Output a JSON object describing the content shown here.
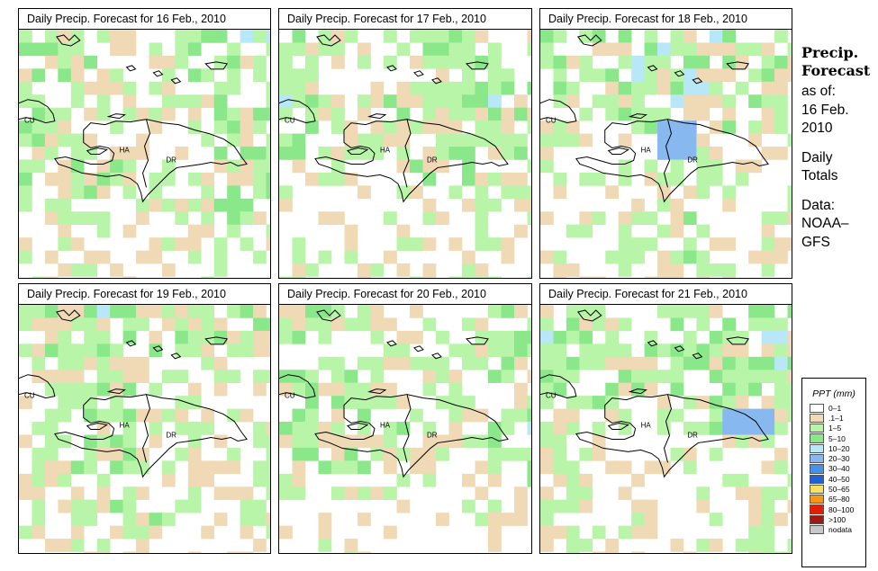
{
  "panels": [
    {
      "title": "Daily Precip. Forecast for  16 Feb., 2010",
      "seed": 1
    },
    {
      "title": "Daily Precip. Forecast for  17 Feb., 2010",
      "seed": 2
    },
    {
      "title": "Daily Precip. Forecast for  18 Feb., 2010",
      "seed": 3
    },
    {
      "title": "Daily Precip. Forecast for  19 Feb., 2010",
      "seed": 4
    },
    {
      "title": "Daily Precip. Forecast for  20 Feb., 2010",
      "seed": 5
    },
    {
      "title": "Daily Precip. Forecast for  21 Feb., 2010",
      "seed": 6
    }
  ],
  "map_labels": {
    "cu": "CU",
    "ha": "HA",
    "dr": "DR"
  },
  "sidebar": {
    "title_line1": "Precip.",
    "title_line2": "Forecast",
    "asof": "as of:",
    "date_line1": "16 Feb.",
    "date_line2": "2010",
    "daily_line1": "Daily",
    "daily_line2": "Totals",
    "data_line1": "Data:",
    "data_line2": "NOAA–",
    "data_line3": "GFS"
  },
  "legend": {
    "title": "PPT (mm)",
    "items": [
      {
        "label": "0–1",
        "color": "#ffffff"
      },
      {
        "label": ".1–1",
        "color": "#f0d9b5"
      },
      {
        "label": "1–5",
        "color": "#b8f5a8"
      },
      {
        "label": "5–10",
        "color": "#8ae88a"
      },
      {
        "label": "10–20",
        "color": "#b8e8f8"
      },
      {
        "label": "20–30",
        "color": "#88b8f0"
      },
      {
        "label": "30–40",
        "color": "#4890e8"
      },
      {
        "label": "40–50",
        "color": "#2060d8"
      },
      {
        "label": "50–65",
        "color": "#f8e060"
      },
      {
        "label": "65–80",
        "color": "#f89810"
      },
      {
        "label": "80–100",
        "color": "#e02000"
      },
      {
        "label": ">100",
        "color": "#a01810"
      },
      {
        "label": "nodata",
        "color": "#c8c8c8"
      }
    ]
  }
}
